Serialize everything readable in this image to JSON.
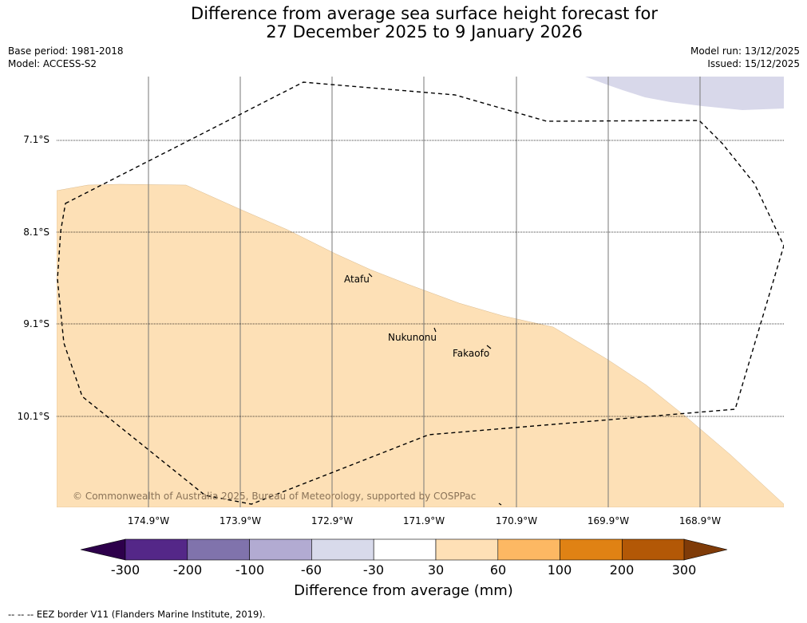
{
  "title": {
    "line1": "Difference from average sea surface height forecast for",
    "line2": "27 December 2025 to 9 January 2026"
  },
  "meta": {
    "base_period": "Base period: 1981-2018",
    "model": "Model: ACCESS-S2",
    "model_run": "Model run: 13/12/2025",
    "issued": "Issued: 15/12/2025"
  },
  "map": {
    "latitudes": [
      "7.1°S",
      "8.1°S",
      "9.1°S",
      "10.1°S"
    ],
    "longitudes": [
      "174.9°W",
      "173.9°W",
      "172.9°W",
      "171.9°W",
      "170.9°W",
      "169.9°W",
      "168.9°W"
    ],
    "places": [
      {
        "name": "Atafu"
      },
      {
        "name": "Nukunonu"
      },
      {
        "name": "Fakaofo"
      }
    ],
    "copyright": "© Commonwealth of Australia 2025, Bureau of Meteorology, supported by COSPPac",
    "colors": {
      "ocean": "#ffffff",
      "anomaly_30_60": "#fde0b6",
      "anomaly_neg30_neg60": "#d8d8ea"
    }
  },
  "colorbar": {
    "title": "Difference from average (mm)",
    "ticks": [
      "-300",
      "-200",
      "-100",
      "-60",
      "-30",
      "30",
      "60",
      "100",
      "200",
      "300"
    ],
    "colors": [
      "#2d004b",
      "#542788",
      "#8073ac",
      "#b2abd2",
      "#d8daeb",
      "#ffffff",
      "#fee0b6",
      "#fdb863",
      "#e08214",
      "#b35806",
      "#7f3b08"
    ]
  },
  "footer": "--  --  -- EEZ border V11 (Flanders Marine Institute, 2019)."
}
